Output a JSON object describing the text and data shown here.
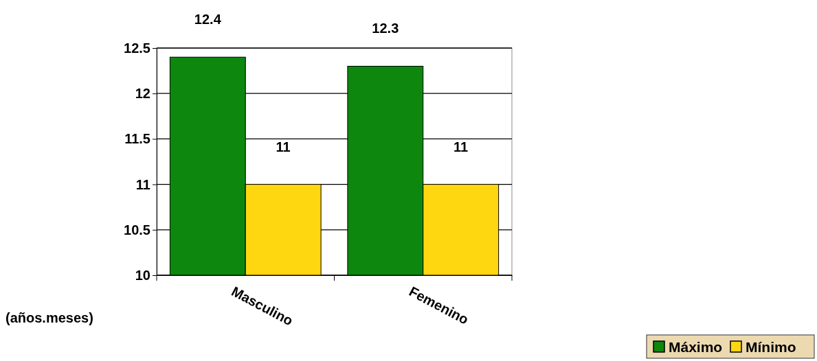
{
  "chart_data": {
    "type": "bar",
    "ylabel": "(años.meses)",
    "categories": [
      "Masculino",
      "Femenino"
    ],
    "series": [
      {
        "name": "Máximo",
        "color": "#0e870e",
        "values": [
          12.4,
          12.3
        ]
      },
      {
        "name": "Mínimo",
        "color": "#ffd710",
        "values": [
          11,
          11
        ]
      }
    ],
    "ylim": [
      10,
      12.5
    ],
    "yticks": [
      10,
      10.5,
      11,
      11.5,
      12,
      12.5
    ],
    "grid": "y",
    "data_labels": true,
    "legend": "bottom right"
  }
}
